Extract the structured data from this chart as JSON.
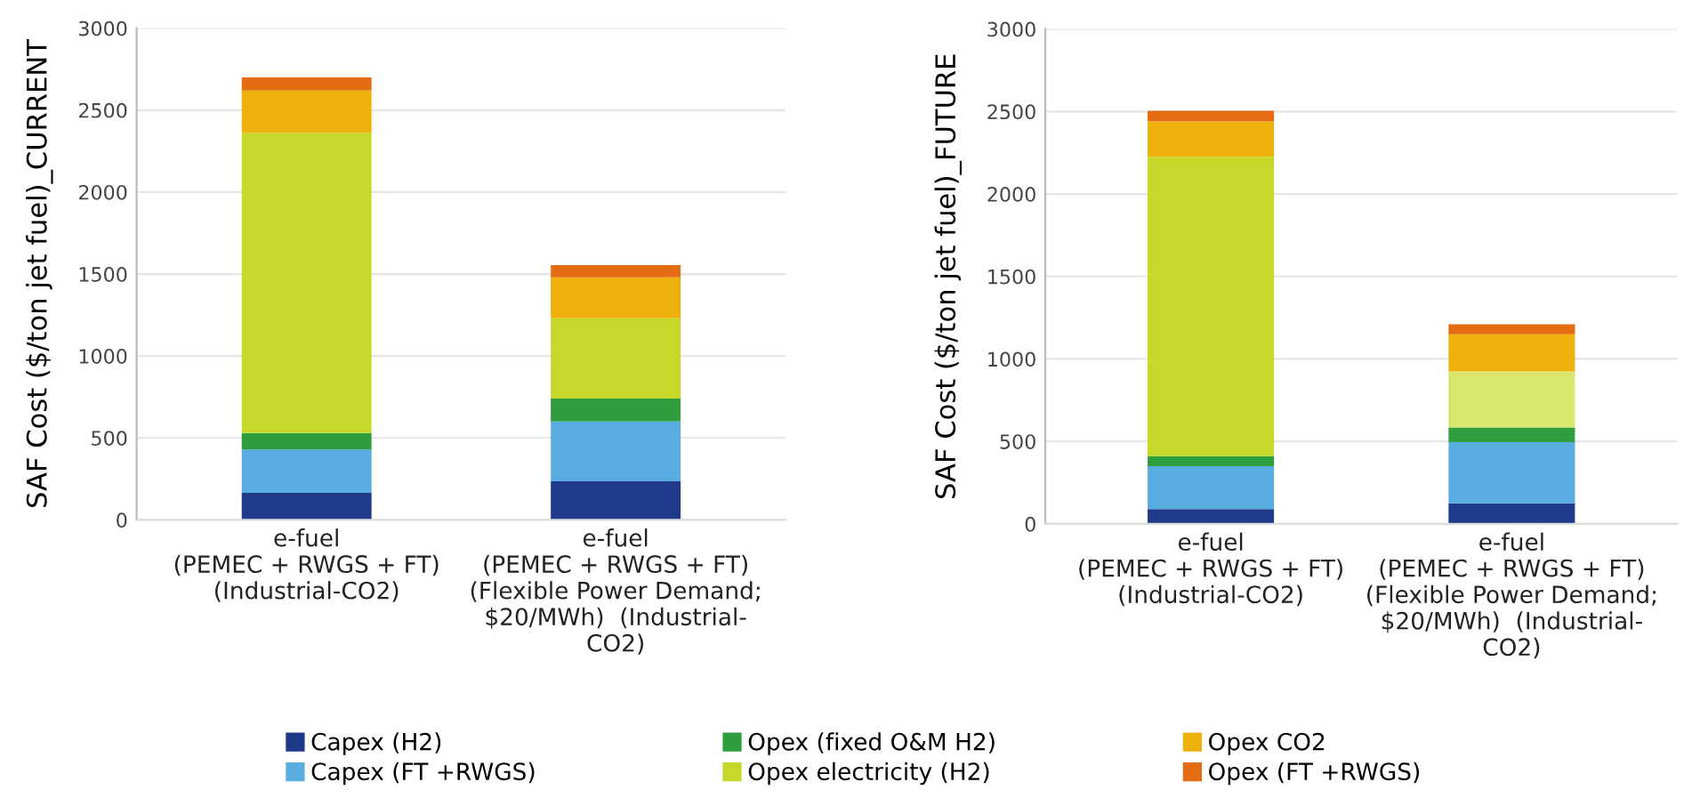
{
  "chart_data": [
    {
      "type": "bar",
      "stacked": true,
      "ylabel": "SAF Cost ($/ton jet fuel)_CURRENT",
      "categories": [
        "e-fuel\n(PEMEC + RWGS + FT)\n(Industrial-CO2)",
        "e-fuel\n(PEMEC + RWGS + FT)\n(Flexible Power Demand;\n$20/MWh)  (Industrial-\nCO2)"
      ],
      "ylim": [
        0,
        3000
      ],
      "yticks": [
        0,
        500,
        1000,
        1500,
        2000,
        2500,
        3000
      ],
      "grid": "y",
      "legend": "bottom",
      "series": [
        {
          "name": "Capex (H2)",
          "color": "#1f3a8a",
          "values": [
            165,
            235
          ]
        },
        {
          "name": "Capex (FT +RWGS)",
          "color": "#5aade0",
          "values": [
            265,
            365
          ]
        },
        {
          "name": "Opex (fixed O&M H2)",
          "color": "#2e9e3e",
          "values": [
            100,
            140
          ]
        },
        {
          "name": "Opex electricity (H2)",
          "color": "#c6d92b",
          "values": [
            1830,
            490
          ]
        },
        {
          "name": "Opex CO2",
          "color": "#eeb10c",
          "values": [
            260,
            250
          ]
        },
        {
          "name": "Opex (FT +RWGS)",
          "color": "#e46c12",
          "values": [
            80,
            75
          ]
        }
      ]
    },
    {
      "type": "bar",
      "stacked": true,
      "ylabel": "SAF Cost ($/ton jet fuel)_FUTURE",
      "categories": [
        "e-fuel\n(PEMEC + RWGS + FT)\n(Industrial-CO2)",
        "e-fuel\n(PEMEC + RWGS + FT)\n(Flexible Power Demand;\n$20/MWh)  (Industrial-\nCO2)"
      ],
      "ylim": [
        0,
        3000
      ],
      "yticks": [
        0,
        500,
        1000,
        1500,
        2000,
        2500,
        3000
      ],
      "grid": "y",
      "legend": "bottom",
      "series": [
        {
          "name": "Capex (H2)",
          "color": "#1f3a8a",
          "values": [
            90,
            125
          ]
        },
        {
          "name": "Capex (FT +RWGS)",
          "color": "#5aade0",
          "values": [
            260,
            370
          ]
        },
        {
          "name": "Opex (fixed O&M H2)",
          "color": "#2e9e3e",
          "values": [
            60,
            90
          ]
        },
        {
          "name": "Opex electricity (H2)",
          "color": "#c6d92b",
          "colors": [
            "#c6d92b",
            "#d8e66c"
          ],
          "values": [
            1815,
            340
          ]
        },
        {
          "name": "Opex CO2",
          "color": "#eeb10c",
          "values": [
            215,
            225
          ]
        },
        {
          "name": "Opex (FT +RWGS)",
          "color": "#e46c12",
          "values": [
            65,
            60
          ]
        }
      ]
    }
  ]
}
